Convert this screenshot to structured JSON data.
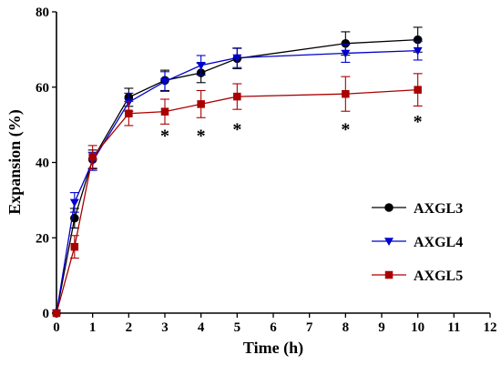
{
  "chart_data": {
    "type": "line",
    "xlabel": "Time (h)",
    "ylabel": "Expansion (%)",
    "xlim": [
      0,
      12
    ],
    "ylim": [
      0,
      80
    ],
    "x_ticks": [
      0,
      1,
      2,
      3,
      4,
      5,
      6,
      7,
      8,
      9,
      10,
      11,
      12
    ],
    "y_ticks": [
      0,
      20,
      40,
      60,
      80
    ],
    "grid": false,
    "legend": "right",
    "x": [
      0,
      0.5,
      1,
      2,
      3,
      4,
      5,
      8,
      10
    ],
    "series": [
      {
        "name": "AXGL3",
        "color": "#000000",
        "marker": "circle",
        "values": [
          0,
          25.2,
          40.8,
          57.3,
          61.8,
          63.8,
          67.6,
          71.6,
          72.6
        ],
        "errors": [
          0,
          2.6,
          2.5,
          2.4,
          2.7,
          2.6,
          2.7,
          3.1,
          3.3
        ]
      },
      {
        "name": "AXGL4",
        "color": "#0000cc",
        "marker": "triangle-down",
        "values": [
          0,
          29.4,
          40.3,
          56.0,
          61.5,
          65.8,
          67.8,
          69.0,
          69.7
        ],
        "errors": [
          0,
          2.6,
          2.4,
          2.4,
          2.6,
          2.6,
          2.6,
          2.4,
          2.5
        ]
      },
      {
        "name": "AXGL5",
        "color": "#aa0000",
        "marker": "square",
        "values": [
          0,
          17.6,
          41.5,
          53.0,
          53.5,
          55.5,
          57.5,
          58.2,
          59.3
        ],
        "errors": [
          0,
          3.0,
          3.0,
          3.2,
          3.3,
          3.6,
          3.4,
          4.6,
          4.3
        ]
      }
    ],
    "annotations": [
      {
        "x": 3,
        "y": 47.3,
        "text": "*"
      },
      {
        "x": 4,
        "y": 47.3,
        "text": "*"
      },
      {
        "x": 5,
        "y": 49.0,
        "text": "*"
      },
      {
        "x": 8,
        "y": 49.0,
        "text": "*"
      },
      {
        "x": 10,
        "y": 51.0,
        "text": "*"
      }
    ]
  }
}
